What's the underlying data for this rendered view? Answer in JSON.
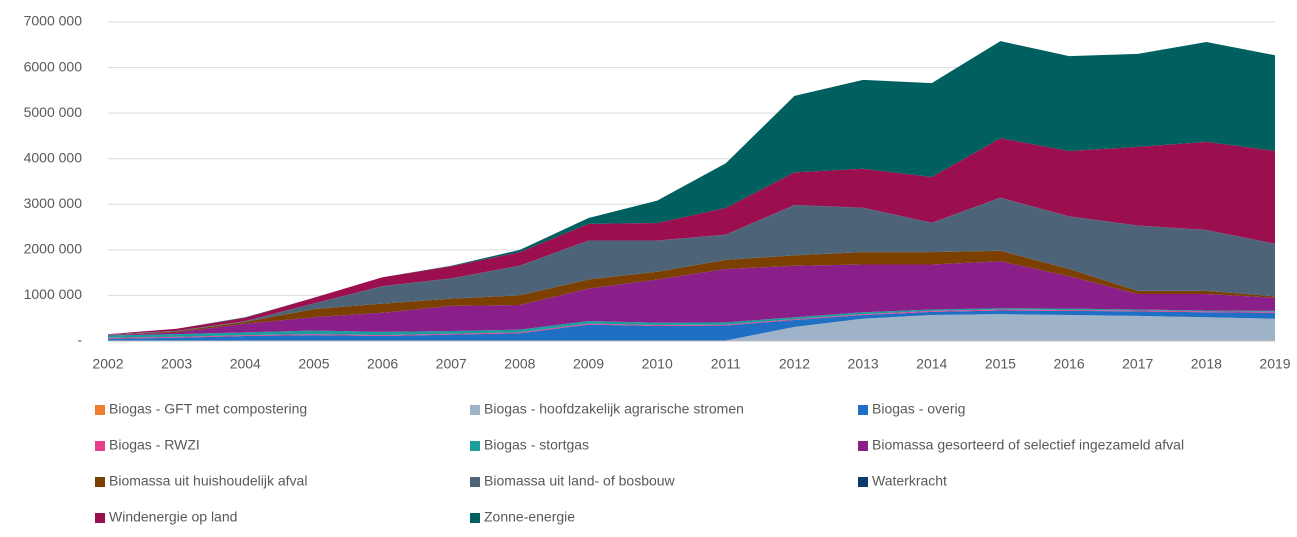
{
  "chart_data": {
    "type": "stacked_area",
    "categories": [
      "2002",
      "2003",
      "2004",
      "2005",
      "2006",
      "2007",
      "2008",
      "2009",
      "2010",
      "2011",
      "2012",
      "2013",
      "2014",
      "2015",
      "2016",
      "2017",
      "2018",
      "2019"
    ],
    "ylim": [
      0,
      7000000
    ],
    "yticks": [
      {
        "value": 0,
        "label": "-"
      },
      {
        "value": 1000000,
        "label": "1000 000"
      },
      {
        "value": 2000000,
        "label": "2000 000"
      },
      {
        "value": 3000000,
        "label": "3000 000"
      },
      {
        "value": 4000000,
        "label": "4000 000"
      },
      {
        "value": 5000000,
        "label": "5000 000"
      },
      {
        "value": 6000000,
        "label": "6000 000"
      },
      {
        "value": 7000000,
        "label": "7000 000"
      }
    ],
    "grid": true,
    "legend": "bottom",
    "series": [
      {
        "name": "Biogas - GFT met compostering",
        "color": "#ed7d31",
        "values": [
          10000,
          10000,
          10000,
          10000,
          10000,
          10000,
          10000,
          10000,
          10000,
          10000,
          10000,
          10000,
          10000,
          10000,
          10000,
          10000,
          10000,
          10000
        ]
      },
      {
        "name": "Biogas - hoofdzakelijk agrarische stromen",
        "color": "#9fb3c8",
        "values": [
          0,
          0,
          0,
          0,
          0,
          0,
          0,
          0,
          0,
          0,
          300000,
          480000,
          560000,
          580000,
          560000,
          540000,
          510000,
          480000
        ]
      },
      {
        "name": "Biogas - overig",
        "color": "#1f6fc5",
        "values": [
          40000,
          60000,
          100000,
          120000,
          100000,
          130000,
          160000,
          350000,
          320000,
          330000,
          150000,
          80000,
          70000,
          80000,
          90000,
          100000,
          110000,
          130000
        ]
      },
      {
        "name": "Biogas - RWZI",
        "color": "#e8408c",
        "values": [
          20000,
          20000,
          20000,
          20000,
          20000,
          20000,
          20000,
          20000,
          20000,
          20000,
          20000,
          20000,
          20000,
          20000,
          20000,
          20000,
          20000,
          20000
        ]
      },
      {
        "name": "Biogas - stortgas",
        "color": "#1a9e9e",
        "values": [
          50000,
          60000,
          60000,
          80000,
          70000,
          60000,
          60000,
          60000,
          50000,
          50000,
          40000,
          40000,
          30000,
          30000,
          30000,
          20000,
          20000,
          20000
        ]
      },
      {
        "name": "Biomassa gesorteerd of selectief ingezameld afval",
        "color": "#8a1f8a",
        "values": [
          10000,
          40000,
          190000,
          290000,
          420000,
          550000,
          540000,
          710000,
          950000,
          1170000,
          1130000,
          1050000,
          990000,
          1030000,
          710000,
          340000,
          360000,
          290000
        ]
      },
      {
        "name": "Biomassa uit huishoudelijk afval",
        "color": "#7b3f00",
        "values": [
          5000,
          20000,
          40000,
          180000,
          200000,
          160000,
          210000,
          200000,
          170000,
          200000,
          230000,
          270000,
          270000,
          230000,
          160000,
          70000,
          70000,
          30000
        ]
      },
      {
        "name": "Biomassa uit land- of bosbouw",
        "color": "#4d6478",
        "values": [
          5000,
          10000,
          10000,
          120000,
          380000,
          440000,
          650000,
          850000,
          680000,
          550000,
          1100000,
          970000,
          640000,
          1160000,
          1150000,
          1430000,
          1330000,
          1150000
        ]
      },
      {
        "name": "Waterkracht",
        "color": "#0b3a6b",
        "values": [
          5000,
          5000,
          5000,
          5000,
          5000,
          5000,
          5000,
          5000,
          5000,
          5000,
          5000,
          5000,
          5000,
          5000,
          5000,
          5000,
          5000,
          5000
        ]
      },
      {
        "name": "Windenergie op land",
        "color": "#9c0f4f",
        "values": [
          5000,
          45000,
          75000,
          125000,
          195000,
          265000,
          295000,
          365000,
          385000,
          585000,
          715000,
          855000,
          1005000,
          1305000,
          1435000,
          1725000,
          1935000,
          2035000
        ]
      },
      {
        "name": "Zonne-energie",
        "color": "#005f5f",
        "values": [
          0,
          0,
          10000,
          0,
          0,
          10000,
          50000,
          130000,
          490000,
          980000,
          1680000,
          1950000,
          2060000,
          2130000,
          2080000,
          2040000,
          2190000,
          2100000
        ]
      }
    ]
  }
}
